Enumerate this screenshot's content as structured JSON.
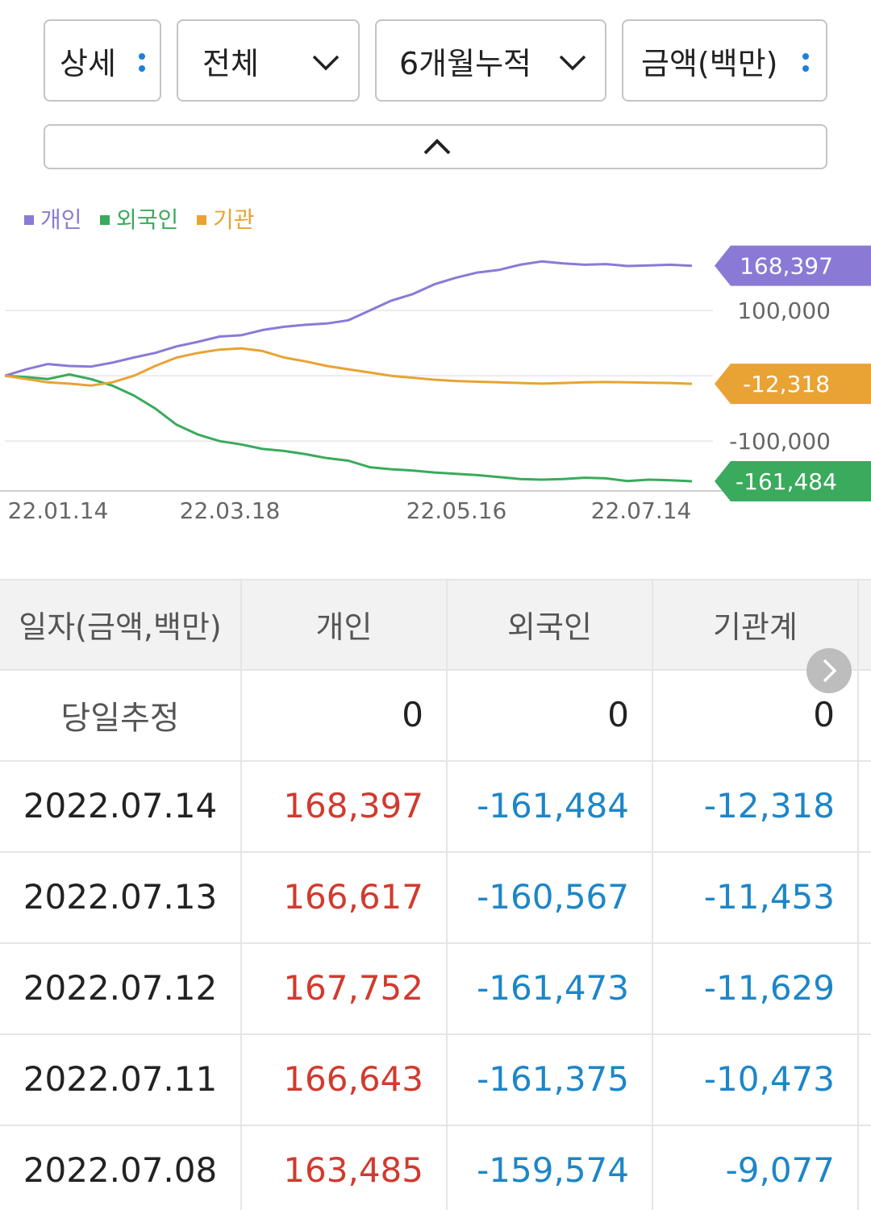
{
  "filters": {
    "detail_label": "상세",
    "scope_label": "전체",
    "period_label": "6개월누적",
    "unit_label": "금액(백만)"
  },
  "colors": {
    "individual": "#8a7ad6",
    "foreign": "#3aaa5c",
    "institution": "#e8a334",
    "positive_text": "#d23a2e",
    "negative_text": "#1d86c7"
  },
  "chart_data": {
    "type": "line",
    "legend": [
      "개인",
      "외국인",
      "기관"
    ],
    "x_tick_labels": [
      "22.01.14",
      "22.03.18",
      "22.05.16",
      "22.07.14"
    ],
    "y_tick_labels": [
      "100,000",
      "-100,000"
    ],
    "ylim": [
      -175000,
      205000
    ],
    "end_labels": [
      "168,397",
      "-12,318",
      "-161,484"
    ],
    "series": [
      {
        "name": "개인",
        "values": [
          0,
          10000,
          18000,
          15000,
          14000,
          20000,
          28000,
          35000,
          45000,
          52000,
          60000,
          62000,
          70000,
          75000,
          78000,
          80000,
          85000,
          100000,
          115000,
          125000,
          140000,
          150000,
          158000,
          162000,
          170000,
          175000,
          172000,
          170000,
          171000,
          168000,
          169000,
          170000,
          168397
        ]
      },
      {
        "name": "외국인",
        "values": [
          0,
          -2000,
          -5000,
          2000,
          -5000,
          -15000,
          -30000,
          -50000,
          -75000,
          -90000,
          -100000,
          -105000,
          -112000,
          -115000,
          -120000,
          -126000,
          -130000,
          -140000,
          -143000,
          -145000,
          -148000,
          -150000,
          -152000,
          -155000,
          -158000,
          -159000,
          -158000,
          -156000,
          -157000,
          -161000,
          -159000,
          -160000,
          -161484
        ]
      },
      {
        "name": "기관",
        "values": [
          0,
          -5000,
          -10000,
          -12000,
          -15000,
          -10000,
          0,
          15000,
          28000,
          35000,
          40000,
          42000,
          38000,
          28000,
          22000,
          15000,
          10000,
          5000,
          0,
          -3000,
          -6000,
          -8000,
          -9000,
          -10000,
          -11000,
          -12000,
          -11000,
          -10000,
          -9500,
          -10000,
          -10500,
          -11000,
          -12318
        ]
      }
    ]
  },
  "table": {
    "headers": [
      "일자(금액,백만)",
      "개인",
      "외국인",
      "기관계"
    ],
    "estimate_row": {
      "label": "당일추정",
      "individual": "0",
      "foreign": "0",
      "institution": "0"
    },
    "rows": [
      {
        "date": "2022.07.14",
        "individual": "168,397",
        "foreign": "-161,484",
        "institution": "-12,318"
      },
      {
        "date": "2022.07.13",
        "individual": "166,617",
        "foreign": "-160,567",
        "institution": "-11,453"
      },
      {
        "date": "2022.07.12",
        "individual": "167,752",
        "foreign": "-161,473",
        "institution": "-11,629"
      },
      {
        "date": "2022.07.11",
        "individual": "166,643",
        "foreign": "-161,375",
        "institution": "-10,473"
      },
      {
        "date": "2022.07.08",
        "individual": "163,485",
        "foreign": "-159,574",
        "institution": "-9,077"
      }
    ]
  }
}
